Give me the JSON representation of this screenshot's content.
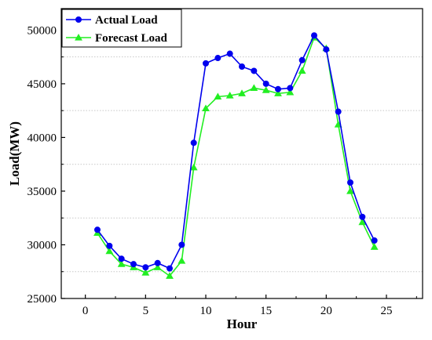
{
  "chart_data": {
    "type": "line",
    "xlabel": "Hour",
    "ylabel": "Load(MW)",
    "xlim": [
      -2,
      28
    ],
    "ylim": [
      25000,
      52000
    ],
    "x_ticks": [
      0,
      5,
      10,
      15,
      20,
      25
    ],
    "y_ticks": [
      25000,
      30000,
      35000,
      40000,
      45000,
      50000
    ],
    "grid": "dotted-horizontal",
    "legend_position": "top-left",
    "x": [
      1,
      2,
      3,
      4,
      5,
      6,
      7,
      8,
      9,
      10,
      11,
      12,
      13,
      14,
      15,
      16,
      17,
      18,
      19,
      20,
      21,
      22,
      23,
      24
    ],
    "series": [
      {
        "name": "Actual Load",
        "color": "#0000ee",
        "marker": "circle",
        "values": [
          31400,
          29900,
          28700,
          28200,
          27900,
          28300,
          27800,
          30000,
          39500,
          46900,
          47400,
          47800,
          46600,
          46200,
          45000,
          44500,
          44600,
          47200,
          49500,
          48200,
          42400,
          35800,
          32600,
          30400
        ]
      },
      {
        "name": "Forecast Load",
        "color": "#22ee22",
        "marker": "triangle",
        "values": [
          31100,
          29400,
          28200,
          27900,
          27400,
          27900,
          27100,
          28500,
          37200,
          42700,
          43800,
          43900,
          44100,
          44600,
          44400,
          44100,
          44200,
          46200,
          49300,
          48300,
          41200,
          35000,
          32100,
          29800
        ]
      }
    ]
  }
}
